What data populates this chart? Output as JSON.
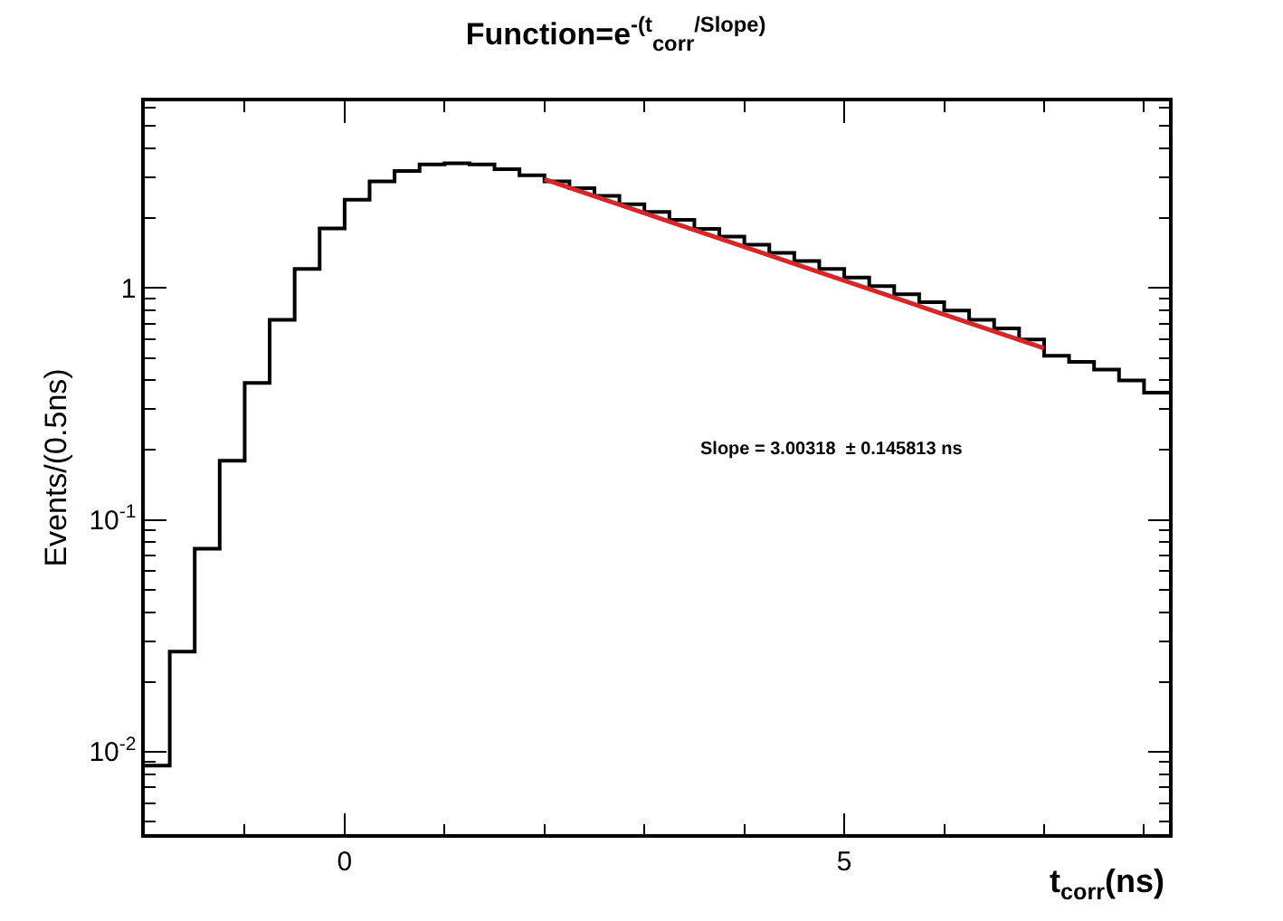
{
  "chart_data": {
    "type": "histogram",
    "title": "Function=e$^{-(t}$$_{corr}$$^{/Slope)}$",
    "xlabel": "t$_{corr}$(ns)",
    "ylabel": "Events/(0.5ns)",
    "series": [
      {
        "color": "#000000",
        "bins": [
          -2,
          -1.75,
          -1.5,
          -1.25,
          -1,
          -0.75,
          -0.5,
          -0.25,
          0,
          0.25,
          0.5,
          0.75,
          1,
          1.25,
          1.5,
          1.75,
          2,
          2.25,
          2.5,
          2.75,
          3,
          3.25,
          3.5,
          3.75,
          4,
          4.25,
          4.5,
          4.75,
          5,
          5.25,
          5.5,
          5.75,
          6,
          6.25,
          6.5,
          6.75,
          7,
          7.25,
          7.5,
          7.75,
          8,
          8.25
        ],
        "values": [
          0.0087,
          0.027,
          0.075,
          0.18,
          0.39,
          0.73,
          1.21,
          1.81,
          2.41,
          2.89,
          3.2,
          3.42,
          3.46,
          3.42,
          3.26,
          3.07,
          2.89,
          2.7,
          2.5,
          2.3,
          2.13,
          1.97,
          1.8,
          1.67,
          1.54,
          1.42,
          1.31,
          1.21,
          1.11,
          1.02,
          0.94,
          0.87,
          0.8,
          0.73,
          0.67,
          0.6,
          0.51,
          0.48,
          0.445,
          0.4,
          0.354
        ]
      },
      {
        "type": "line",
        "color": "#d62728",
        "x": [
          2,
          7
        ],
        "values": [
          2.95,
          0.55
        ]
      }
    ],
    "log": "y",
    "xlim": [
      -2,
      8.25
    ],
    "ylim": [
      0.0044,
      6.4
    ],
    "xticks": [
      {
        "value": -1,
        "label": null
      },
      0,
      {
        "value": 1,
        "label": null
      },
      {
        "value": 2,
        "label": null
      },
      {
        "value": 3,
        "label": null
      },
      {
        "value": 4,
        "label": null
      },
      5,
      {
        "value": 6,
        "label": null
      },
      {
        "value": 7,
        "label": null
      },
      {
        "value": 8,
        "label": null
      }
    ],
    "yticks": [
      {
        "value": 0.005,
        "label": null
      },
      {
        "value": 0.006,
        "label": null
      },
      {
        "value": 0.007,
        "label": null
      },
      {
        "value": 0.008,
        "label": null
      },
      {
        "value": 0.009,
        "label": null
      },
      {
        "value": 0.01,
        "label": "10$^{-2}$"
      },
      {
        "value": 0.02,
        "label": null
      },
      {
        "value": 0.03,
        "label": null
      },
      {
        "value": 0.04,
        "label": null
      },
      {
        "value": 0.05,
        "label": null
      },
      {
        "value": 0.06,
        "label": null
      },
      {
        "value": 0.07,
        "label": null
      },
      {
        "value": 0.08,
        "label": null
      },
      {
        "value": 0.09,
        "label": null
      },
      {
        "value": 0.1,
        "label": "10$^{-1}$"
      },
      {
        "value": 0.2,
        "label": null
      },
      {
        "value": 0.3,
        "label": null
      },
      {
        "value": 0.4,
        "label": null
      },
      {
        "value": 0.5,
        "label": null
      },
      {
        "value": 0.6,
        "label": null
      },
      {
        "value": 0.7,
        "label": null
      },
      {
        "value": 0.8,
        "label": null
      },
      {
        "value": 0.9,
        "label": null
      },
      {
        "value": 1,
        "label": "1"
      },
      {
        "value": 2,
        "label": null
      },
      {
        "value": 3,
        "label": null
      },
      {
        "value": 4,
        "label": null
      },
      {
        "value": 5,
        "label": null
      },
      {
        "value": 6,
        "label": null
      }
    ],
    "annotations": [
      "Slope = 3.00318  ± 0.145813 ns"
    ]
  }
}
